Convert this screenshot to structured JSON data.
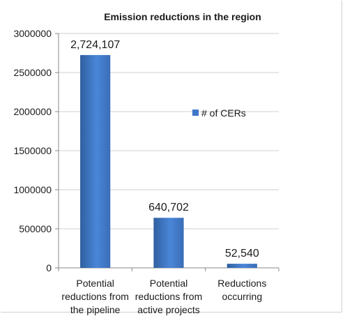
{
  "chart_data": {
    "type": "bar",
    "title": "Emission reductions in the region",
    "categories": [
      [
        "Potential",
        "reductions from",
        "the pipeline"
      ],
      [
        "Potential",
        "reductions from",
        "active projects"
      ],
      [
        "Reductions",
        "occurring"
      ]
    ],
    "series": [
      {
        "name": "# of CERs",
        "values": [
          2724107,
          640702,
          52540
        ],
        "color": "#3f77c9"
      }
    ],
    "data_labels": [
      "2,724,107",
      "640,702",
      "52,540"
    ],
    "yticks": [
      "0",
      "500000",
      "1000000",
      "1500000",
      "2000000",
      "2500000",
      "3000000"
    ],
    "ylim": [
      0,
      3000000
    ],
    "grid": true,
    "legend_position": "right"
  }
}
